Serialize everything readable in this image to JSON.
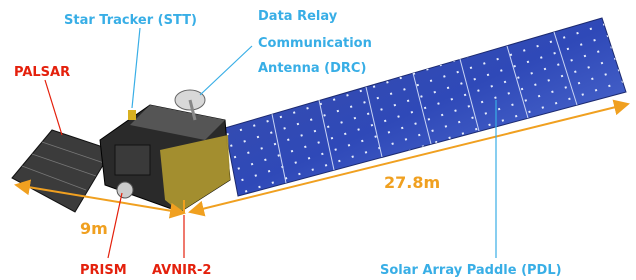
{
  "labels": {
    "star_tracker": "Star Tracker (STT)",
    "drc": [
      "Data Relay",
      "Communication",
      "Antenna (DRC)"
    ],
    "palsar": "PALSAR",
    "prism": "PRISM",
    "avnir": "AVNIR-2",
    "pdl": "Solar Array Paddle (PDL)"
  },
  "dimensions": {
    "width": "9m",
    "length": "27.8m"
  }
}
